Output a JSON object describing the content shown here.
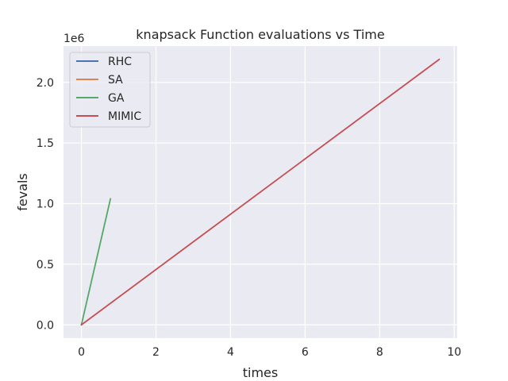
{
  "chart_data": {
    "type": "line",
    "title": "knapsack Function evaluations vs Time",
    "xlabel": "times",
    "ylabel": "fevals",
    "y_offset_label": "1e6",
    "y_scale": 1000000,
    "xlim": [
      -0.48,
      10.08
    ],
    "ylim": [
      -109500,
      2299500
    ],
    "x_ticks": [
      0,
      2,
      4,
      6,
      8,
      10
    ],
    "x_tick_labels": [
      "0",
      "2",
      "4",
      "6",
      "8",
      "10"
    ],
    "y_ticks": [
      0,
      500000,
      1000000,
      1500000,
      2000000
    ],
    "y_tick_labels": [
      "0.0",
      "0.5",
      "1.0",
      "1.5",
      "2.0"
    ],
    "grid": true,
    "background": "#eaeaf2",
    "legend_position": "top-left",
    "series": [
      {
        "name": "RHC",
        "color": "#4c72b0",
        "x": [
          0.0,
          0.005
        ],
        "y": [
          0,
          5000
        ]
      },
      {
        "name": "SA",
        "color": "#dd8452",
        "x": [
          0.0,
          0.004
        ],
        "y": [
          0,
          4500
        ]
      },
      {
        "name": "GA",
        "color": "#55a868",
        "x": [
          0.0,
          0.78
        ],
        "y": [
          0,
          1040000
        ]
      },
      {
        "name": "MIMIC",
        "color": "#c44e52",
        "x": [
          0.0,
          9.6
        ],
        "y": [
          0,
          2190000
        ]
      }
    ]
  }
}
